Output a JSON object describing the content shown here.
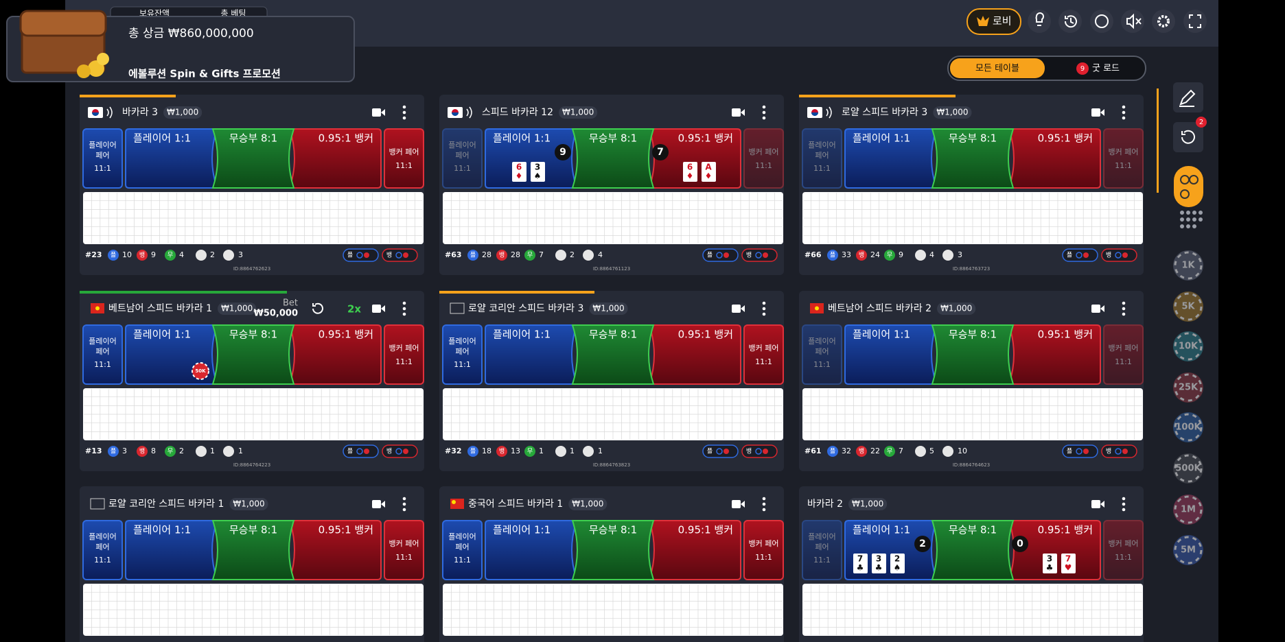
{
  "promo": {
    "tabs": [
      "보유잔액",
      "총 베팅"
    ],
    "title": "총 상금 ₩860,000,000",
    "subtitle": "에볼루션 Spin & Gifts 프로모션"
  },
  "lobby": "로비",
  "filter": {
    "all": "모든 테이블",
    "good_road_count": "9",
    "good_road": "굿 로드"
  },
  "sidebar": {
    "history_badge": "2",
    "chips": [
      "1K",
      "5K",
      "10K",
      "25K",
      "100K",
      "500K",
      "1M",
      "5M"
    ]
  },
  "bet_labels": {
    "player_pair": [
      "플레이어",
      "페어"
    ],
    "pair_payout": "11:1",
    "player": "플레이어 1:1",
    "tie": "무승부 8:1",
    "banker": "0.95:1 뱅커",
    "banker_pair": "뱅커 페어"
  },
  "stat_labels": {
    "player": "플",
    "banker": "뱅",
    "tie": "무"
  },
  "tables": [
    {
      "name": "바카라 3",
      "limit": "₩1,000",
      "flag": "korea",
      "dim_pairs": false,
      "stats": {
        "round": "#23",
        "player": 10,
        "banker": 9,
        "tie": 4,
        "player_pair": 2,
        "banker_pair": 3
      },
      "id": "ID:8864762623"
    },
    {
      "name": "스피드 바카라 12",
      "limit": "₩1,000",
      "flag": "korea",
      "dim_pairs": true,
      "player_hand": {
        "score": 9,
        "cards": [
          [
            "6",
            "♦"
          ],
          [
            "3",
            "♠"
          ]
        ]
      },
      "banker_hand": {
        "score": 7,
        "cards": [
          [
            "6",
            "♦"
          ],
          [
            "A",
            "♦"
          ]
        ]
      },
      "stats": {
        "round": "#63",
        "player": 28,
        "banker": 28,
        "tie": 7,
        "player_pair": 2,
        "banker_pair": 4
      },
      "id": "ID:8864761123"
    },
    {
      "name": "로얄 스피드 바카라 3",
      "limit": "₩1,000",
      "flag": "korea",
      "dim_pairs": true,
      "stats": {
        "round": "#66",
        "player": 33,
        "banker": 24,
        "tie": 9,
        "player_pair": 4,
        "banker_pair": 3
      },
      "id": "ID:8864763723"
    },
    {
      "name": "베트남어 스피드 바카라 1",
      "limit": "₩1,000",
      "flag": "vietnam",
      "dim_pairs": false,
      "bet": {
        "label": "Bet",
        "amount": "₩50,000"
      },
      "multiplier": "2x",
      "chip": "50K",
      "stats": {
        "round": "#13",
        "player": 3,
        "banker": 8,
        "tie": 2,
        "player_pair": 1,
        "banker_pair": 1
      },
      "id": "ID:8864764223"
    },
    {
      "name": "로얄 코리안 스피드 바카라 3",
      "limit": "₩1,000",
      "flag": "blank",
      "dim_pairs": false,
      "stats": {
        "round": "#32",
        "player": 18,
        "banker": 13,
        "tie": 1,
        "player_pair": 1,
        "banker_pair": 1
      },
      "id": "ID:8864763823"
    },
    {
      "name": "베트남어 스피드 바카라 2",
      "limit": "₩1,000",
      "flag": "vietnam",
      "dim_pairs": true,
      "stats": {
        "round": "#61",
        "player": 32,
        "banker": 22,
        "tie": 7,
        "player_pair": 5,
        "banker_pair": 10
      },
      "id": "ID:8864764623"
    },
    {
      "name": "로얄 코리안 스피드 바카라 1",
      "limit": "₩1,000",
      "flag": "blank",
      "dim_pairs": false
    },
    {
      "name": "중국어 스피드 바카라 1",
      "limit": "₩1,000",
      "flag": "china",
      "dim_pairs": false
    },
    {
      "name": "바카라 2",
      "limit": "₩1,000",
      "flag": "none",
      "dim_pairs": true,
      "player_hand": {
        "score": 2,
        "cards": [
          [
            "7",
            "♣"
          ],
          [
            "3",
            "♣"
          ],
          [
            "2",
            "♠"
          ]
        ]
      },
      "banker_hand": {
        "score": 0,
        "cards": [
          [
            "3",
            "♣"
          ],
          [
            "7",
            "♥"
          ]
        ]
      }
    }
  ]
}
